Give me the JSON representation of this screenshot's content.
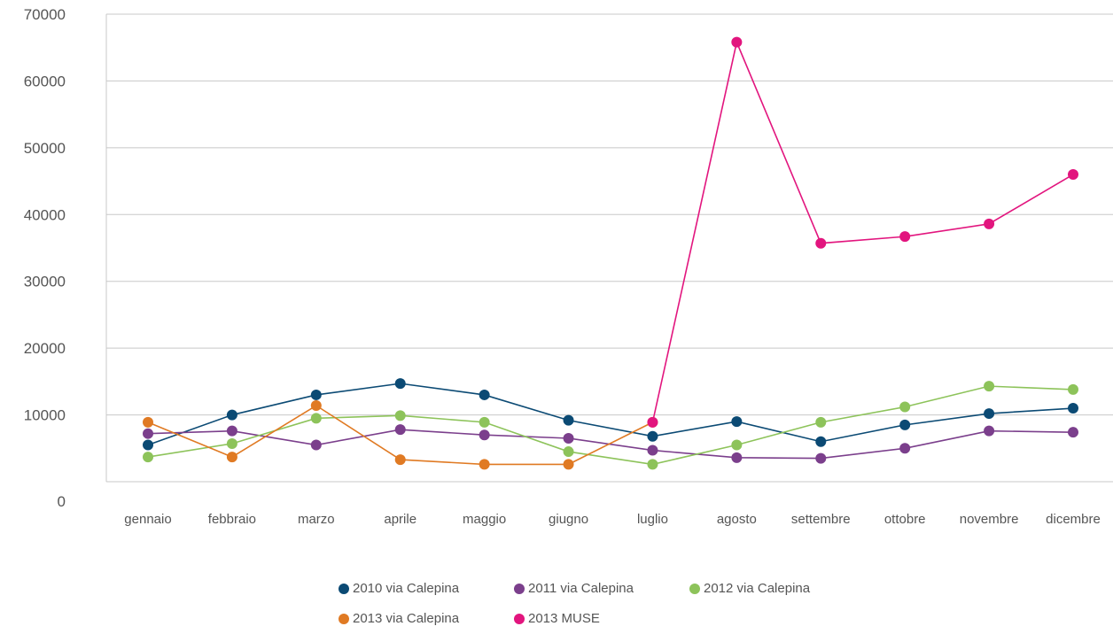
{
  "chart_data": {
    "type": "line",
    "categories": [
      "gennaio",
      "febbraio",
      "marzo",
      "aprile",
      "maggio",
      "giugno",
      "luglio",
      "agosto",
      "settembre",
      "ottobre",
      "novembre",
      "dicembre"
    ],
    "y_ticks": [
      "0",
      "10000",
      "20000",
      "30000",
      "40000",
      "50000",
      "60000",
      "70000"
    ],
    "ylim": [
      0,
      70000
    ],
    "grid": true,
    "legend_position": "bottom",
    "series": [
      {
        "name": "2010 via Calepina",
        "color": "#0b4a74",
        "values": [
          5500,
          10000,
          13000,
          14700,
          13000,
          9200,
          6800,
          9000,
          6000,
          8500,
          10200,
          11000
        ]
      },
      {
        "name": "2011 via Calepina",
        "color": "#7b3f8c",
        "values": [
          7200,
          7600,
          5500,
          7800,
          7000,
          6500,
          4700,
          3600,
          3500,
          5000,
          7600,
          7400
        ]
      },
      {
        "name": "2012 via Calepina",
        "color": "#8dc35a",
        "values": [
          3700,
          5700,
          9500,
          9900,
          8900,
          4500,
          2600,
          5500,
          8900,
          11200,
          14300,
          13800
        ]
      },
      {
        "name": "2013 via Calepina",
        "color": "#e07a23",
        "values": [
          8900,
          3700,
          11400,
          3300,
          2600,
          2600,
          8900,
          null,
          null,
          null,
          null,
          null
        ]
      },
      {
        "name": "2013 MUSE",
        "color": "#e2157e",
        "values": [
          null,
          null,
          null,
          null,
          null,
          null,
          8900,
          65800,
          35700,
          36700,
          38600,
          46000
        ]
      }
    ]
  }
}
